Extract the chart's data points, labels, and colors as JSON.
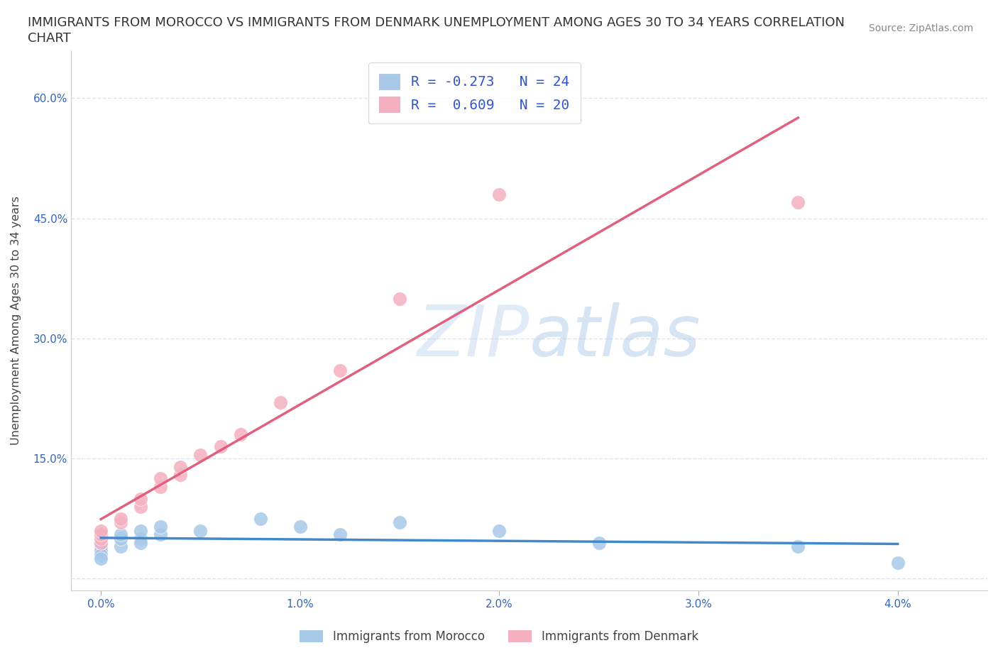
{
  "title_line1": "IMMIGRANTS FROM MOROCCO VS IMMIGRANTS FROM DENMARK UNEMPLOYMENT AMONG AGES 30 TO 34 YEARS CORRELATION",
  "title_line2": "CHART",
  "source": "Source: ZipAtlas.com",
  "ylabel": "Unemployment Among Ages 30 to 34 years",
  "x_ticks": [
    0.0,
    0.01,
    0.02,
    0.03,
    0.04
  ],
  "x_tick_labels": [
    "0.0%",
    "1.0%",
    "2.0%",
    "3.0%",
    "4.0%"
  ],
  "y_ticks": [
    0.0,
    0.15,
    0.3,
    0.45,
    0.6
  ],
  "y_tick_labels": [
    "",
    "15.0%",
    "30.0%",
    "45.0%",
    "60.0%"
  ],
  "xlim": [
    -0.0015,
    0.0445
  ],
  "ylim": [
    -0.015,
    0.66
  ],
  "morocco_color": "#a8c8e8",
  "denmark_color": "#f4b0c0",
  "morocco_line_color": "#4488cc",
  "denmark_line_color": "#e06080",
  "morocco_R": -0.273,
  "morocco_N": 24,
  "denmark_R": 0.609,
  "denmark_N": 20,
  "watermark_zip": "ZIP",
  "watermark_atlas": "atlas",
  "grid_color": "#dde5f0",
  "morocco_x": [
    0.0,
    0.0,
    0.0,
    0.0,
    0.0,
    0.0,
    0.0,
    0.001,
    0.001,
    0.001,
    0.002,
    0.002,
    0.002,
    0.003,
    0.003,
    0.005,
    0.008,
    0.01,
    0.012,
    0.015,
    0.02,
    0.025,
    0.035,
    0.04
  ],
  "morocco_y": [
    0.05,
    0.04,
    0.035,
    0.045,
    0.03,
    0.055,
    0.025,
    0.04,
    0.05,
    0.055,
    0.05,
    0.045,
    0.06,
    0.055,
    0.065,
    0.06,
    0.075,
    0.065,
    0.055,
    0.07,
    0.06,
    0.045,
    0.04,
    0.02
  ],
  "denmark_x": [
    0.0,
    0.0,
    0.0,
    0.0,
    0.001,
    0.001,
    0.002,
    0.002,
    0.003,
    0.003,
    0.004,
    0.004,
    0.005,
    0.006,
    0.007,
    0.009,
    0.012,
    0.015,
    0.02,
    0.035
  ],
  "denmark_y": [
    0.045,
    0.05,
    0.055,
    0.06,
    0.07,
    0.075,
    0.09,
    0.1,
    0.115,
    0.125,
    0.13,
    0.14,
    0.155,
    0.165,
    0.18,
    0.22,
    0.26,
    0.35,
    0.48,
    0.47
  ]
}
